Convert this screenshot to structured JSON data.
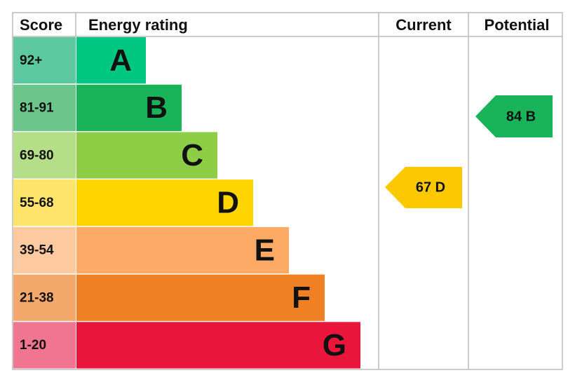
{
  "header": {
    "score": "Score",
    "rating": "Energy rating",
    "current": "Current",
    "potential": "Potential"
  },
  "bands": [
    {
      "score": "92+",
      "letter": "A",
      "color": "#00c781",
      "score_color": "#5ec9a0"
    },
    {
      "score": "81-91",
      "letter": "B",
      "color": "#19b459",
      "score_color": "#6cc68c"
    },
    {
      "score": "69-80",
      "letter": "C",
      "color": "#8dce46",
      "score_color": "#b4de88"
    },
    {
      "score": "55-68",
      "letter": "D",
      "color": "#ffd500",
      "score_color": "#ffe46c"
    },
    {
      "score": "39-54",
      "letter": "E",
      "color": "#fcaa65",
      "score_color": "#fdc9a0"
    },
    {
      "score": "21-38",
      "letter": "F",
      "color": "#ef8023",
      "score_color": "#f4a96c"
    },
    {
      "score": "1-20",
      "letter": "G",
      "color": "#e9153b",
      "score_color": "#ef7590"
    }
  ],
  "current": {
    "label": "67 D",
    "color": "#fcc900"
  },
  "potential": {
    "label": "84 B",
    "color": "#19b459"
  }
}
